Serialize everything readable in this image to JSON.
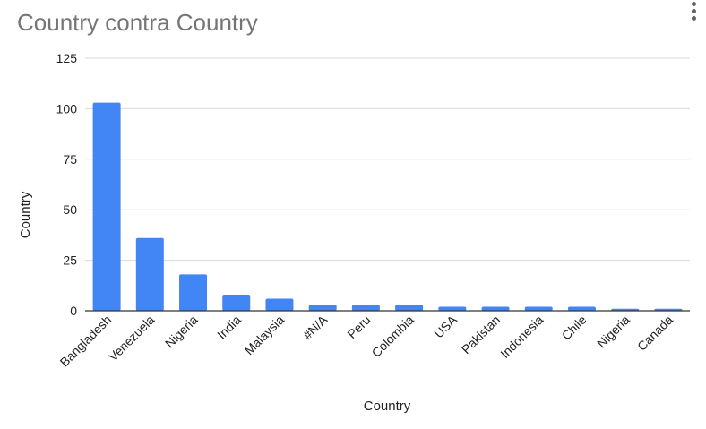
{
  "chart_data": {
    "type": "bar",
    "title": "Country contra Country",
    "xlabel": "Country",
    "ylabel": "Country",
    "categories": [
      "Bangladesh",
      "Venezuela",
      "Nigeria",
      "India",
      "Malaysia",
      "#N/A",
      "Peru",
      "Colombia",
      "USA",
      "Pakistan",
      "Indonesia",
      "Chile",
      "Nigeria",
      "Canada"
    ],
    "values": [
      103,
      36,
      18,
      8,
      6,
      3,
      3,
      3,
      2,
      2,
      2,
      2,
      1,
      1
    ],
    "ylim": [
      0,
      125
    ],
    "yticks": [
      "0",
      "25",
      "50",
      "75",
      "100",
      "125"
    ],
    "grid": true,
    "legend": "none",
    "colors": {
      "bar": "#4285f4",
      "grid": "#d9d9d9",
      "axis": "#333333",
      "title": "#757575"
    }
  },
  "menu": {
    "icon": "more-vert-icon"
  }
}
